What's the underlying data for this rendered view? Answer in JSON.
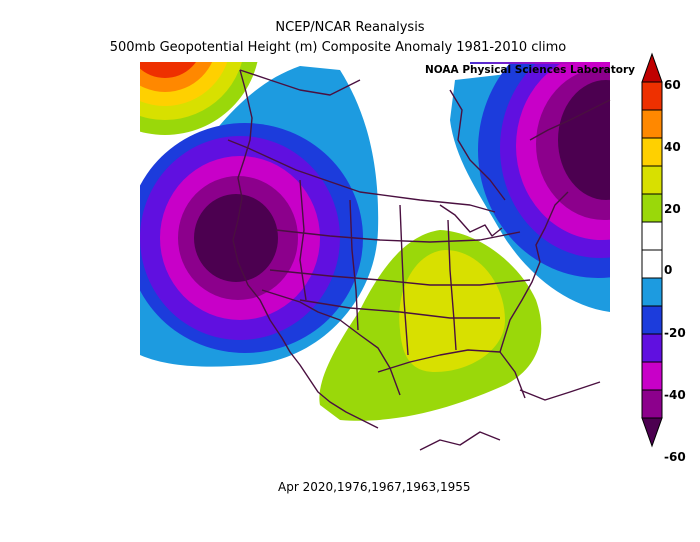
{
  "title_line1": "NCEP/NCAR Reanalysis",
  "title_line2": "500mb Geopotential Height (m) Composite Anomaly 1981-2010 climo",
  "credit": "NOAA Physical Sciences Laboratory",
  "footer": "Apr 2020,1976,1967,1963,1955",
  "colorbar": {
    "ticks": [
      "60",
      "40",
      "20",
      "0",
      "-20",
      "-40",
      "-60"
    ],
    "colors": [
      "#c00000",
      "#ee3000",
      "#ff8800",
      "#ffd000",
      "#d8e000",
      "#9ad80a",
      "#ffffff",
      "#ffffff",
      "#1d9be0",
      "#1c3cdc",
      "#6010e0",
      "#c800c8",
      "#8c008c",
      "#4c0050"
    ]
  }
}
